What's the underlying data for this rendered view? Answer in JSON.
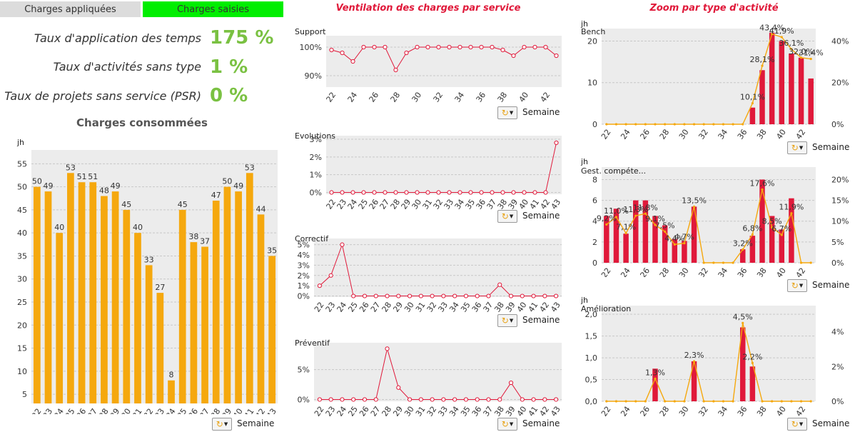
{
  "tabs": [
    {
      "label": "Charges appliquées",
      "active": false
    },
    {
      "label": "Charges saisies",
      "active": true
    }
  ],
  "kpis": [
    {
      "label": "Taux d'application des temps",
      "value": "175 %"
    },
    {
      "label": "Taux d'activités sans type",
      "value": "1 %"
    },
    {
      "label": "Taux de projets sans service (PSR)",
      "value": "0 %"
    }
  ],
  "titles": {
    "charges_consommees": "Charges consommées",
    "ventilation": "Ventilation des charges par service",
    "zoom": "Zoom par type d'activité"
  },
  "controls": {
    "semaine_label": "Semaine"
  },
  "colors": {
    "bar_orange": "#f5a80e",
    "bar_red": "#e0193a",
    "line_red": "#e0193a",
    "line_orange": "#f5a80e",
    "kpi_green": "#7ac142",
    "tab_active": "#00ee00",
    "tab_inactive": "#dcdcdc",
    "plot_bg": "#ececec"
  },
  "chart_data": [
    {
      "id": "charges",
      "type": "bar",
      "title": "Charges consommées",
      "ylabel": "jh",
      "xlabel": "Semaine",
      "ylim": [
        3,
        58
      ],
      "yticks": [
        5,
        10,
        15,
        20,
        25,
        30,
        35,
        40,
        45,
        50,
        55
      ],
      "categories": [
        "22",
        "23",
        "24",
        "25",
        "26",
        "27",
        "28",
        "29",
        "30",
        "31",
        "32",
        "33",
        "34",
        "35",
        "36",
        "37",
        "38",
        "39",
        "40",
        "41",
        "42",
        "43"
      ],
      "values": [
        50,
        49,
        40,
        53,
        51,
        51,
        48,
        49,
        45,
        40,
        33,
        27,
        8,
        45,
        38,
        37,
        47,
        50,
        49,
        53,
        44,
        35
      ],
      "labels": [
        "50",
        "49",
        "40",
        "53",
        "51",
        "51",
        "48",
        "49",
        "45",
        "40",
        "33",
        "27",
        "8",
        "45",
        "38",
        "37",
        "47",
        "50",
        "49",
        "53",
        "44",
        "35"
      ],
      "grid": true
    },
    {
      "id": "support",
      "type": "line",
      "title": "Support",
      "xlabel": "Semaine",
      "ylim": [
        86,
        104
      ],
      "yticks": [
        {
          "v": 90,
          "label": "90%"
        },
        {
          "v": 100,
          "label": "100%"
        }
      ],
      "xticks": [
        "22",
        "24",
        "26",
        "28",
        "30",
        "32",
        "34",
        "36",
        "38",
        "40",
        "42"
      ],
      "x": [
        22,
        23,
        24,
        25,
        26,
        27,
        28,
        29,
        30,
        31,
        32,
        33,
        34,
        35,
        36,
        37,
        38,
        39,
        40,
        41,
        42,
        43
      ],
      "values": [
        99,
        98,
        95,
        100,
        100,
        100,
        92,
        98,
        100,
        100,
        100,
        100,
        100,
        100,
        100,
        100,
        99,
        97,
        100,
        100,
        100,
        97
      ],
      "grid": true
    },
    {
      "id": "evolutions",
      "type": "line",
      "title": "Evolutions",
      "xlabel": "Semaine",
      "ylim": [
        -0.1,
        3.2
      ],
      "yticks": [
        {
          "v": 0,
          "label": "0%"
        },
        {
          "v": 1,
          "label": "1%"
        },
        {
          "v": 2,
          "label": "2%"
        },
        {
          "v": 3,
          "label": "3%"
        }
      ],
      "xticks": [
        "22",
        "23",
        "24",
        "25",
        "26",
        "27",
        "28",
        "29",
        "30",
        "31",
        "32",
        "33",
        "34",
        "35",
        "36",
        "37",
        "38",
        "39",
        "40",
        "41",
        "42",
        "43"
      ],
      "x": [
        22,
        23,
        24,
        25,
        26,
        27,
        28,
        29,
        30,
        31,
        32,
        33,
        34,
        35,
        36,
        37,
        38,
        39,
        40,
        41,
        42,
        43
      ],
      "values": [
        0,
        0,
        0,
        0,
        0,
        0,
        0,
        0,
        0,
        0,
        0,
        0,
        0,
        0,
        0,
        0,
        0,
        0,
        0,
        0,
        0,
        2.8
      ],
      "grid": true
    },
    {
      "id": "correctif",
      "type": "line",
      "title": "Correctif",
      "xlabel": "Semaine",
      "ylim": [
        -0.1,
        5.6
      ],
      "yticks": [
        {
          "v": 0,
          "label": "0%"
        },
        {
          "v": 1,
          "label": "1%"
        },
        {
          "v": 2,
          "label": "2%"
        },
        {
          "v": 3,
          "label": "3%"
        },
        {
          "v": 4,
          "label": "4%"
        },
        {
          "v": 5,
          "label": "5%"
        }
      ],
      "xticks": [
        "22",
        "23",
        "24",
        "25",
        "26",
        "27",
        "28",
        "29",
        "30",
        "31",
        "32",
        "33",
        "34",
        "35",
        "36",
        "37",
        "38",
        "39",
        "40",
        "41",
        "42",
        "43"
      ],
      "x": [
        22,
        23,
        24,
        25,
        26,
        27,
        28,
        29,
        30,
        31,
        32,
        33,
        34,
        35,
        36,
        37,
        38,
        39,
        40,
        41,
        42,
        43
      ],
      "values": [
        1,
        2,
        5,
        0,
        0,
        0,
        0,
        0,
        0,
        0,
        0,
        0,
        0,
        0,
        0,
        0,
        1.1,
        0,
        0,
        0,
        0,
        0
      ],
      "grid": true
    },
    {
      "id": "preventif",
      "type": "line",
      "title": "Préventif",
      "xlabel": "Semaine",
      "ylim": [
        -0.3,
        9.5
      ],
      "yticks": [
        {
          "v": 0,
          "label": "0%"
        },
        {
          "v": 5,
          "label": "5%"
        }
      ],
      "xticks": [
        "22",
        "23",
        "24",
        "25",
        "26",
        "27",
        "28",
        "29",
        "30",
        "31",
        "32",
        "33",
        "34",
        "35",
        "36",
        "37",
        "38",
        "39",
        "40",
        "41",
        "42",
        "43"
      ],
      "x": [
        22,
        23,
        24,
        25,
        26,
        27,
        28,
        29,
        30,
        31,
        32,
        33,
        34,
        35,
        36,
        37,
        38,
        39,
        40,
        41,
        42,
        43
      ],
      "values": [
        0,
        0,
        0,
        0,
        0,
        0,
        8.5,
        2,
        0,
        0,
        0,
        0,
        0,
        0,
        0,
        0,
        0,
        2.8,
        0,
        0,
        0,
        0
      ],
      "grid": true
    },
    {
      "id": "bench",
      "type": "bar",
      "title": "Bench",
      "ylabel": "jh",
      "xlabel": "Semaine",
      "ylim": [
        0,
        23
      ],
      "yticks": [
        {
          "v": 0,
          "label": "0"
        },
        {
          "v": 10,
          "label": "10"
        },
        {
          "v": 20,
          "label": "20"
        }
      ],
      "y2lim": [
        0,
        0.46
      ],
      "y2ticks": [
        {
          "v": 0,
          "label": "0%"
        },
        {
          "v": 0.2,
          "label": "20%"
        },
        {
          "v": 0.4,
          "label": "40%"
        }
      ],
      "xticks": [
        "22",
        "24",
        "26",
        "28",
        "30",
        "32",
        "34",
        "36",
        "38",
        "40",
        "42"
      ],
      "x": [
        22,
        23,
        24,
        25,
        26,
        27,
        28,
        29,
        30,
        31,
        32,
        33,
        34,
        35,
        36,
        37,
        38,
        39,
        40,
        41,
        42,
        43
      ],
      "values": [
        0,
        0,
        0,
        0,
        0,
        0,
        0,
        0,
        0,
        0,
        0,
        0,
        0,
        0,
        0,
        4,
        13,
        22,
        20,
        17,
        16,
        11
      ],
      "line_values": [
        0,
        0,
        0,
        0,
        0,
        0,
        0,
        0,
        0,
        0,
        0,
        0,
        0,
        0,
        0,
        0.101,
        0.281,
        0.434,
        0.419,
        0.361,
        0.32,
        0.314
      ],
      "line_labels": [
        "",
        "",
        "",
        "",
        "",
        "",
        "",
        "",
        "",
        "",
        "",
        "",
        "",
        "",
        "",
        "10,1%",
        "28,1%",
        "43,4%",
        "41,9%",
        "36,1%",
        "32,0%",
        "31,4%"
      ],
      "grid": true
    },
    {
      "id": "gest",
      "type": "bar",
      "title": "Gest. compéte...",
      "ylabel": "jh",
      "xlabel": "Semaine",
      "ylim": [
        0,
        9.2
      ],
      "yticks": [
        {
          "v": 0,
          "label": "0"
        },
        {
          "v": 2,
          "label": "2"
        },
        {
          "v": 4,
          "label": "4"
        },
        {
          "v": 6,
          "label": "6"
        },
        {
          "v": 8,
          "label": "8"
        }
      ],
      "y2lim": [
        0,
        0.23
      ],
      "y2ticks": [
        {
          "v": 0,
          "label": "0%"
        },
        {
          "v": 0.05,
          "label": "5%"
        },
        {
          "v": 0.1,
          "label": "10%"
        },
        {
          "v": 0.15,
          "label": "15%"
        },
        {
          "v": 0.2,
          "label": "20%"
        }
      ],
      "xticks": [
        "22",
        "24",
        "26",
        "28",
        "30",
        "32",
        "34",
        "36",
        "38",
        "40",
        "42"
      ],
      "x": [
        22,
        23,
        24,
        25,
        26,
        27,
        28,
        29,
        30,
        31,
        32,
        33,
        34,
        35,
        36,
        37,
        38,
        39,
        40,
        41,
        42,
        43
      ],
      "values": [
        4.5,
        5.2,
        2.8,
        6,
        6,
        4.5,
        3.6,
        2.3,
        2.1,
        5.4,
        0,
        0,
        0,
        0,
        1.3,
        2.6,
        8,
        4.5,
        3.2,
        6.2,
        0,
        0
      ],
      "line_values": [
        0.092,
        0.11,
        0.071,
        0.113,
        0.118,
        0.091,
        0.075,
        0.044,
        0.047,
        0.135,
        0,
        0,
        0,
        0,
        0.032,
        0.068,
        0.176,
        0.085,
        0.067,
        0.119,
        0,
        0
      ],
      "line_labels": [
        "9,2%",
        "11,0%",
        "7,1%",
        "11,3%",
        "11,8%",
        "9,1%",
        "7,5%",
        "4,4%",
        "4,7%",
        "13,5%",
        "",
        "",
        "",
        "",
        "3,2%",
        "6,8%",
        "17,6%",
        "8,5%",
        "6,7%",
        "11,9%",
        "",
        ""
      ],
      "grid": true
    },
    {
      "id": "amelioration",
      "type": "bar",
      "title": "Amélioration",
      "ylabel": "jh",
      "xlabel": "Semaine",
      "ylim": [
        0,
        2.2
      ],
      "yticks": [
        {
          "v": 0,
          "label": "0,0"
        },
        {
          "v": 0.5,
          "label": "0,5"
        },
        {
          "v": 1,
          "label": "1,0"
        },
        {
          "v": 1.5,
          "label": "1,5"
        },
        {
          "v": 2,
          "label": "2,0"
        }
      ],
      "y2lim": [
        0,
        0.055
      ],
      "y2ticks": [
        {
          "v": 0,
          "label": "0%"
        },
        {
          "v": 0.02,
          "label": "2%"
        },
        {
          "v": 0.04,
          "label": "4%"
        }
      ],
      "xticks": [
        "22",
        "24",
        "26",
        "28",
        "30",
        "32",
        "34",
        "36",
        "38",
        "40",
        "42"
      ],
      "x": [
        22,
        23,
        24,
        25,
        26,
        27,
        28,
        29,
        30,
        31,
        32,
        33,
        34,
        35,
        36,
        37,
        38,
        39,
        40,
        41,
        42,
        43
      ],
      "values": [
        0,
        0,
        0,
        0,
        0,
        0.75,
        0,
        0,
        0,
        0.92,
        0,
        0,
        0,
        0,
        1.7,
        0.8,
        0,
        0,
        0,
        0,
        0,
        0
      ],
      "line_values": [
        0,
        0,
        0,
        0,
        0,
        0.013,
        0,
        0,
        0,
        0.023,
        0,
        0,
        0,
        0,
        0.045,
        0.022,
        0,
        0,
        0,
        0,
        0,
        0
      ],
      "line_labels": [
        "",
        "",
        "",
        "",
        "",
        "1,3%",
        "",
        "",
        "",
        "2,3%",
        "",
        "",
        "",
        "",
        "4,5%",
        "2,2%",
        "",
        "",
        "",
        "",
        "",
        ""
      ],
      "grid": true
    }
  ]
}
